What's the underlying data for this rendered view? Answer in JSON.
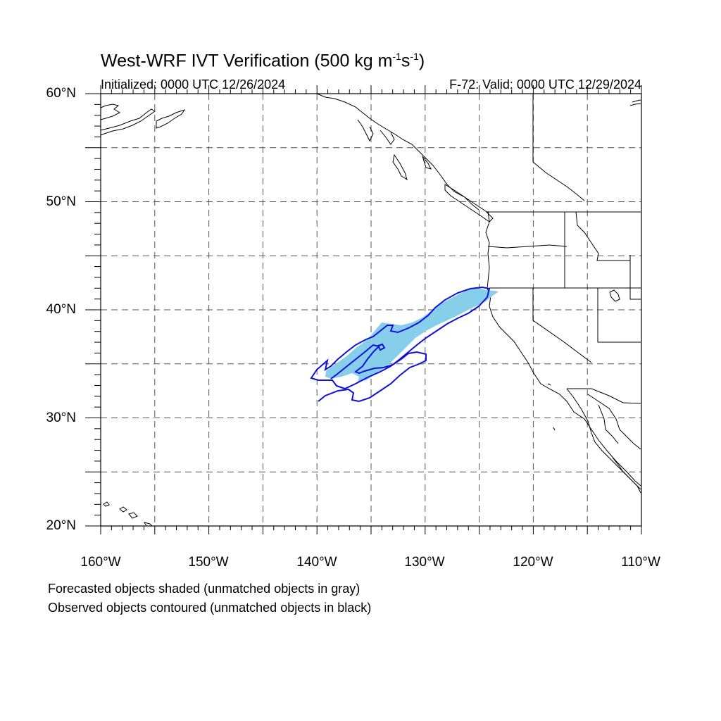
{
  "title": {
    "main": "West-WRF IVT Verification (500 kg m",
    "sup1": "-1",
    "mid": "s",
    "sup2": "-1",
    "close": ")"
  },
  "initialized": "Initialized: 0000 UTC 12/26/2024",
  "valid": "F-72: Valid: 0000 UTC 12/29/2024",
  "lat_labels": [
    "60°N",
    "50°N",
    "40°N",
    "30°N",
    "20°N"
  ],
  "lon_labels": [
    "160°W",
    "150°W",
    "140°W",
    "130°W",
    "120°W",
    "110°W"
  ],
  "footnotes": [
    "Forecasted objects shaded (unmatched objects in gray)",
    "Observed objects contoured (unmatched objects in black)"
  ],
  "map": {
    "lon_range": [
      -160,
      -110
    ],
    "lat_range": [
      20,
      60
    ],
    "grid_spacing_deg": 5,
    "forecast_color": "#87ceeb",
    "observed_color": "#1010dd",
    "coast_color": "#000000",
    "grid_color": "#555555"
  }
}
